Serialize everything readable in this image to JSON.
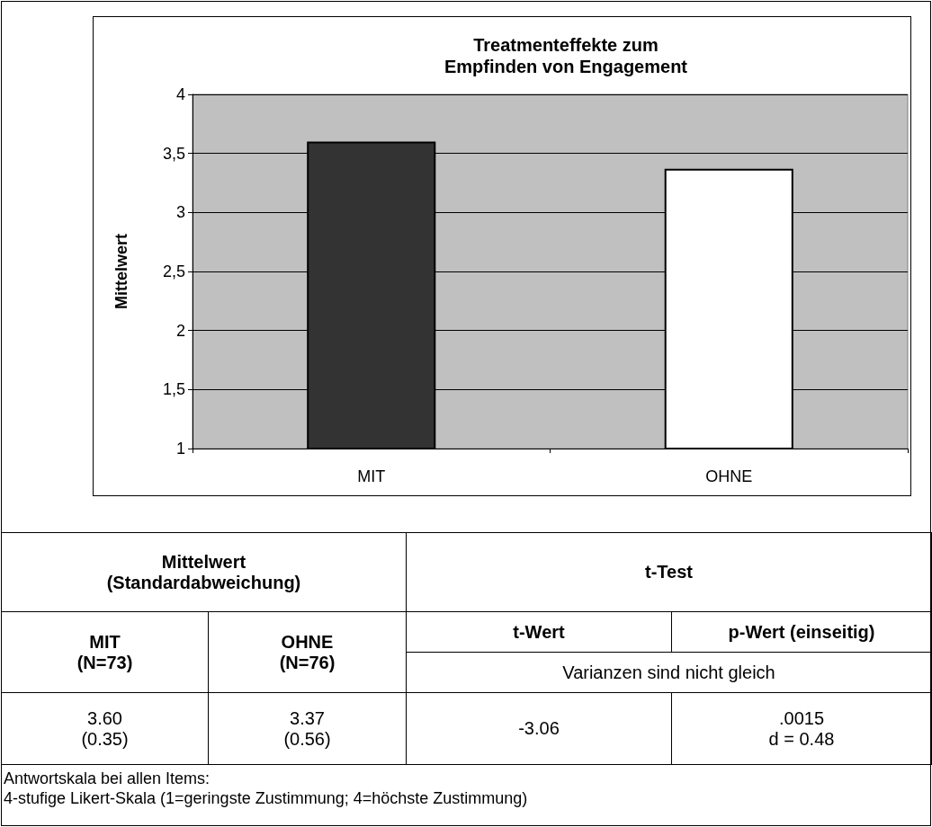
{
  "chart_data": {
    "type": "bar",
    "title": "Treatmenteffekte zum\nEmpfinden von Engagement",
    "ylabel": "Mittelwert",
    "categories": [
      "MIT",
      "OHNE"
    ],
    "values": [
      3.6,
      3.37
    ],
    "colors": [
      "#333333",
      "#ffffff"
    ],
    "ylim": [
      1,
      4
    ],
    "yticks": [
      1,
      {
        "value": 1.5,
        "label": "1,5"
      },
      2,
      {
        "value": 2.5,
        "label": "2,5"
      },
      3,
      {
        "value": 3.5,
        "label": "3,5"
      },
      4
    ],
    "grid": "y",
    "annotations": [
      "Mittelwert\n(Standardabweichung)",
      "t-Test",
      "MIT\n(N=73)",
      "OHNE\n(N=76)",
      "t-Wert",
      "p-Wert (einseitig)",
      "Varianzen sind nicht gleich",
      "3.60\n(0.35)",
      "3.37\n(0.56)",
      "-3.06",
      ".0015\nd = 0.48",
      "Antwortskala bei allen Items:\n4-stufige Likert-Skala (1=geringste Zustimmung; 4=höchste Zustimmung)"
    ]
  }
}
